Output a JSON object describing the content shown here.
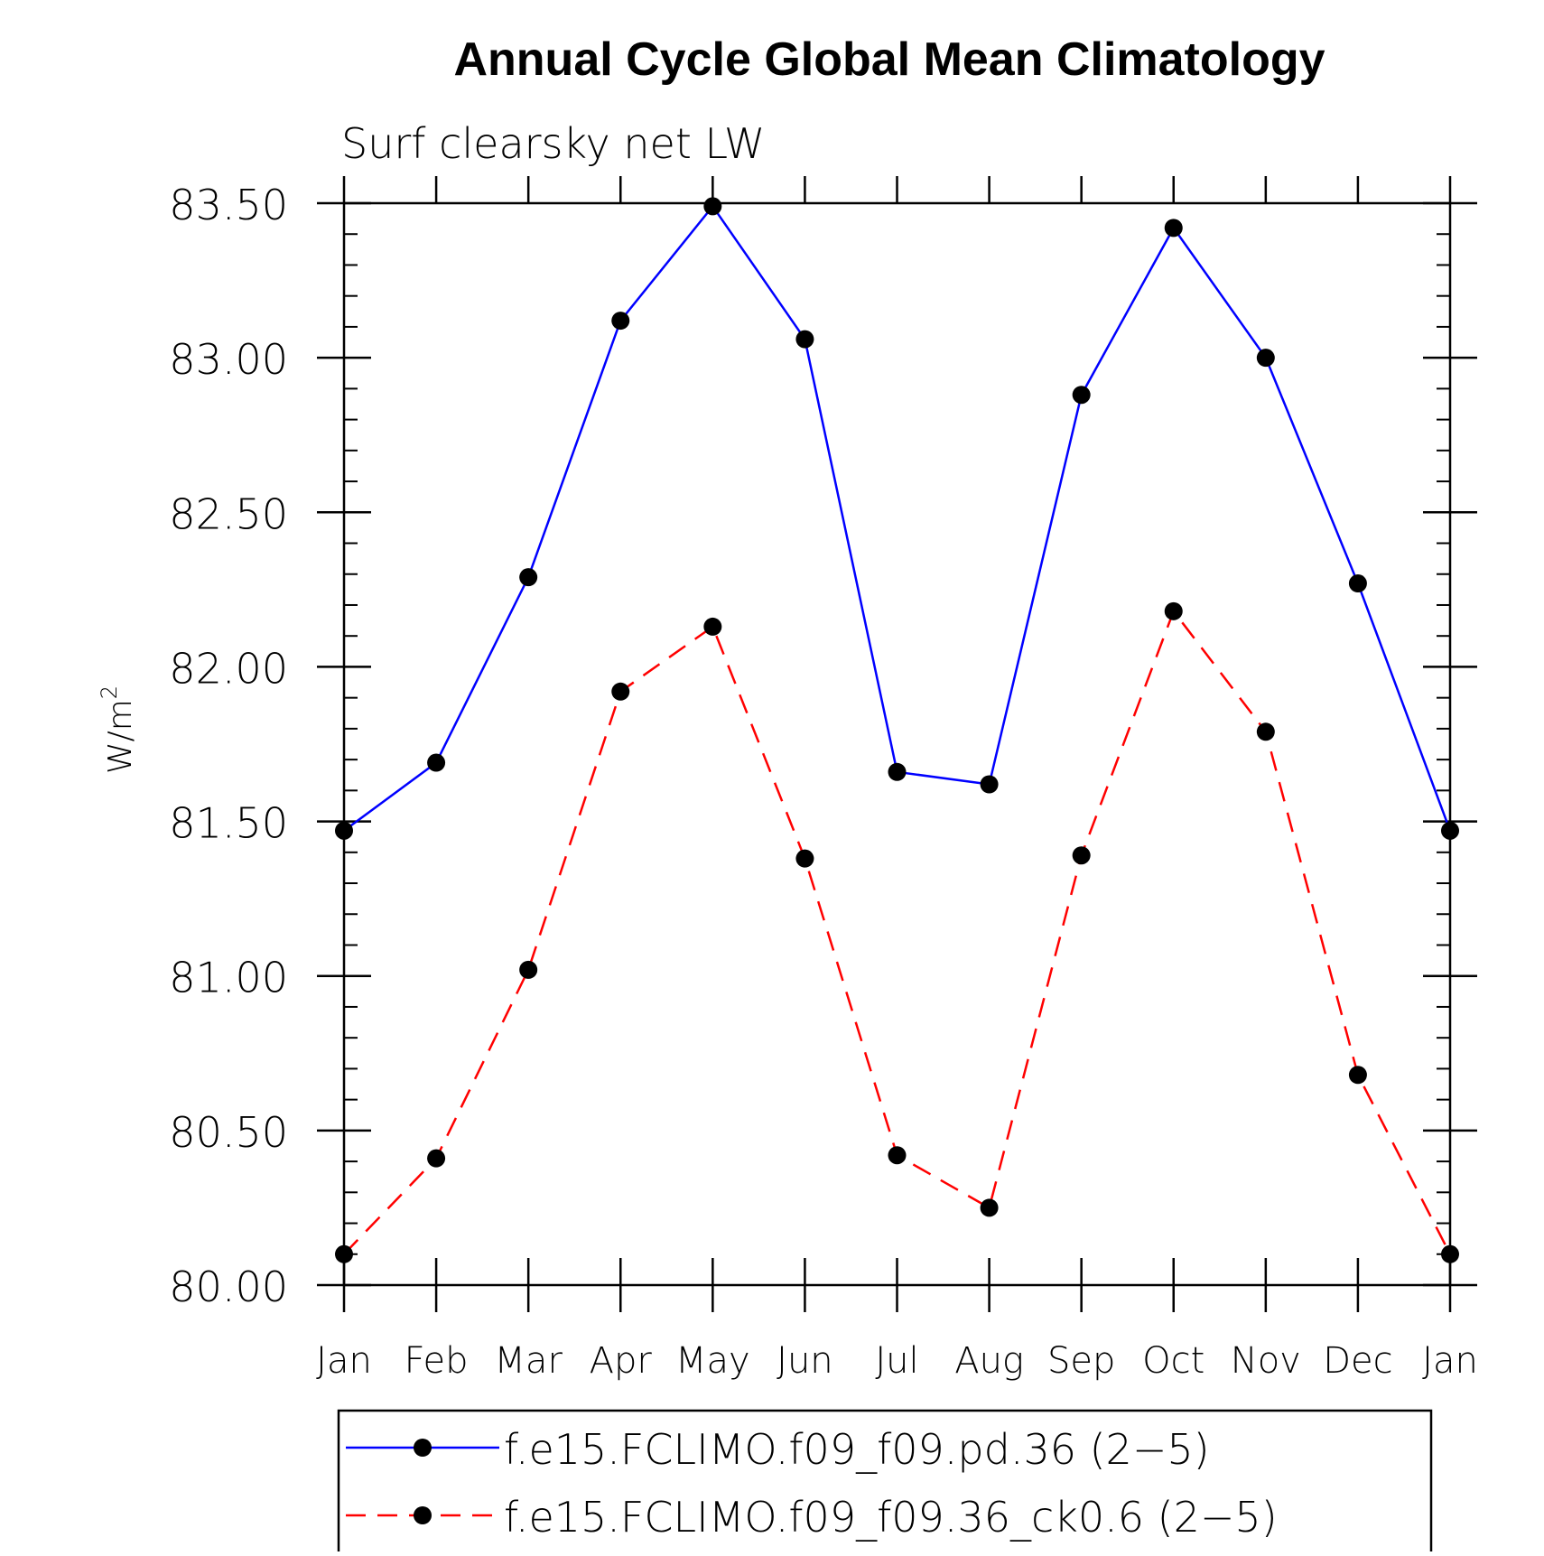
{
  "chart_data": {
    "type": "line",
    "title": "Annual Cycle Global Mean Climatology",
    "subtitle": "Surf clearsky net LW",
    "ylabel": "W/m",
    "ylabel_superscript": "2",
    "xlabel": "",
    "categories": [
      "Jan",
      "Feb",
      "Mar",
      "Apr",
      "May",
      "Jun",
      "Jul",
      "Aug",
      "Sep",
      "Oct",
      "Nov",
      "Dec",
      "Jan"
    ],
    "ylim": [
      80.0,
      83.5
    ],
    "yticks": [
      "80.00",
      "80.50",
      "81.00",
      "81.50",
      "82.00",
      "82.50",
      "83.00",
      "83.50"
    ],
    "ytick_values": [
      80.0,
      80.5,
      81.0,
      81.5,
      82.0,
      82.5,
      83.0,
      83.5
    ],
    "grid": false,
    "legend_position": "bottom",
    "series": [
      {
        "name": "f.e15.FCLIMO.f09_f09.pd.36 (2−5)",
        "color": "#0000ff",
        "dash": "solid",
        "marker": "filled-circle",
        "marker_color": "#000000",
        "values": [
          81.47,
          81.69,
          82.29,
          83.12,
          83.49,
          83.06,
          81.66,
          81.62,
          82.88,
          83.42,
          83.0,
          82.27,
          81.47
        ]
      },
      {
        "name": "f.e15.FCLIMO.f09_f09.36_ck0.6 (2−5)",
        "color": "#ff0000",
        "dash": "dashed",
        "marker": "filled-circle",
        "marker_color": "#000000",
        "values": [
          80.1,
          80.41,
          81.02,
          81.92,
          82.13,
          81.38,
          80.42,
          80.25,
          81.39,
          82.18,
          81.79,
          80.68,
          80.1
        ]
      }
    ]
  }
}
